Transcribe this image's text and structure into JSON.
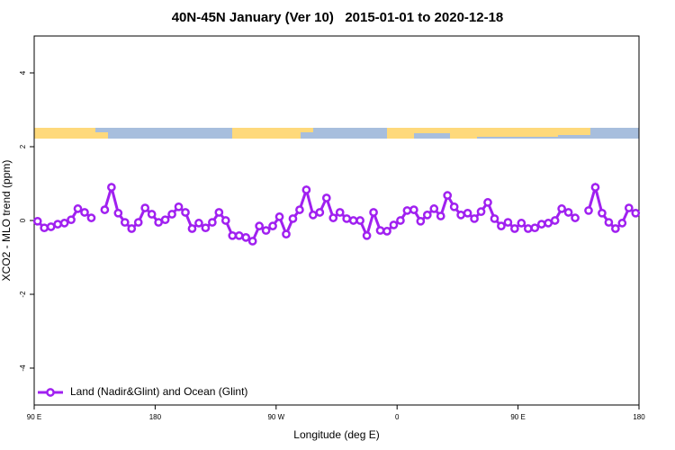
{
  "chart_data": {
    "type": "line",
    "title": "40N-45N January (Ver 10)   2015-01-01 to 2020-12-18",
    "xlabel": "Longitude (deg E)",
    "ylabel": "XCO2 - MLO trend (ppm)",
    "xlim": [
      90,
      540
    ],
    "ylim": [
      -5,
      5
    ],
    "xticks": [
      {
        "value": 90,
        "label": "90 E"
      },
      180,
      {
        "value": 270,
        "label": "90 W"
      },
      {
        "value": 360,
        "label": "0"
      },
      {
        "value": 450,
        "label": "90 E"
      },
      {
        "value": 540,
        "label": "180"
      }
    ],
    "yticks": [
      -4,
      -2,
      0,
      2,
      4
    ],
    "legend": "lower left",
    "x": [
      92.5,
      97.5,
      102.5,
      107.5,
      112.5,
      117.5,
      122.5,
      127.5,
      132.5,
      137.5,
      142.5,
      147.5,
      152.5,
      157.5,
      162.5,
      167.5,
      172.5,
      177.5,
      182.5,
      187.5,
      192.5,
      197.5,
      202.5,
      207.5,
      212.5,
      217.5,
      222.5,
      227.5,
      232.5,
      237.5,
      242.5,
      247.5,
      252.5,
      257.5,
      262.5,
      267.5,
      272.5,
      277.5,
      282.5,
      287.5,
      292.5,
      297.5,
      302.5,
      307.5,
      312.5,
      317.5,
      322.5,
      327.5,
      332.5,
      337.5,
      342.5,
      347.5,
      352.5,
      357.5,
      362.5,
      367.5,
      372.5,
      377.5,
      382.5,
      387.5,
      392.5,
      397.5,
      402.5,
      407.5,
      412.5,
      417.5,
      422.5,
      427.5,
      432.5,
      437.5,
      442.5,
      447.5,
      452.5,
      457.5,
      462.5,
      467.5,
      472.5,
      477.5,
      482.5,
      487.5,
      492.5,
      497.5,
      502.5,
      507.5,
      512.5,
      517.5,
      522.5,
      527.5,
      532.5,
      537.5
    ],
    "series": [
      {
        "name": "Land (Nadir&Glint) and Ocean (Glint)",
        "color": "#a020f0",
        "values": [
          -0.02,
          -0.2,
          -0.17,
          -0.1,
          -0.07,
          0.02,
          0.32,
          0.22,
          0.07,
          null,
          0.29,
          0.9,
          0.2,
          -0.05,
          -0.22,
          -0.05,
          0.34,
          0.17,
          -0.05,
          0.02,
          0.17,
          0.37,
          0.22,
          -0.22,
          -0.07,
          -0.2,
          -0.05,
          0.22,
          0,
          -0.41,
          -0.41,
          -0.46,
          -0.56,
          -0.15,
          -0.27,
          -0.15,
          0.1,
          -0.37,
          0.05,
          0.29,
          0.83,
          0.15,
          0.22,
          0.61,
          0.07,
          0.22,
          0.05,
          0,
          0,
          -0.41,
          0.22,
          -0.27,
          -0.29,
          -0.12,
          0,
          0.27,
          0.29,
          -0.02,
          0.15,
          0.32,
          0.12,
          0.68,
          0.37,
          0.15,
          0.2,
          0.05,
          0.24,
          0.49,
          0.05,
          -0.15,
          -0.05,
          -0.22,
          -0.07,
          -0.22,
          -0.2,
          -0.1,
          -0.07,
          0,
          0.32,
          0.22,
          0.07,
          null,
          0.27,
          0.9,
          0.2,
          -0.05,
          -0.22,
          -0.07,
          0.34,
          0.2
        ]
      }
    ]
  }
}
